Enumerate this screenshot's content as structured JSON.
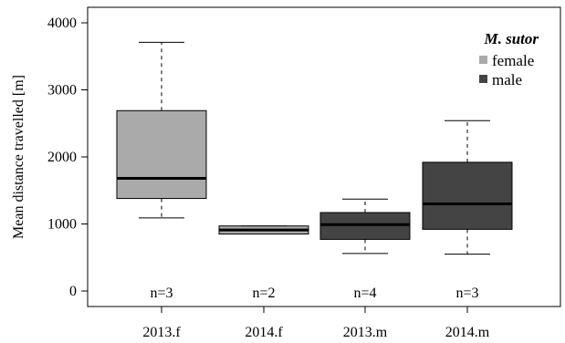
{
  "chart_data": {
    "type": "box",
    "ylabel": "Mean distance travelled  [m]",
    "xlabel": "",
    "ylim": [
      0,
      4000
    ],
    "yticks": [
      0,
      1000,
      2000,
      3000,
      4000
    ],
    "grid": false,
    "legend": {
      "title": "M. sutor",
      "placement": "top-right",
      "entries": [
        {
          "label": "female",
          "color": "#aaaaaa"
        },
        {
          "label": "male",
          "color": "#444444"
        }
      ]
    },
    "categories": [
      "2013.f",
      "2014.f",
      "2013.m",
      "2014.m"
    ],
    "boxes": [
      {
        "category": "2013.f",
        "group": "female",
        "min": 1090,
        "q1": 1380,
        "median": 1680,
        "q3": 2690,
        "max": 3710,
        "n_label": "n=3"
      },
      {
        "category": "2014.f",
        "group": "female",
        "min": 850,
        "q1": 850,
        "median": 910,
        "q3": 970,
        "max": 970,
        "n_label": "n=2"
      },
      {
        "category": "2013.m",
        "group": "male",
        "min": 560,
        "q1": 770,
        "median": 990,
        "q3": 1170,
        "max": 1370,
        "n_label": "n=4"
      },
      {
        "category": "2014.m",
        "group": "male",
        "min": 550,
        "q1": 920,
        "median": 1300,
        "q3": 1920,
        "max": 2540,
        "n_label": "n=3"
      }
    ]
  }
}
